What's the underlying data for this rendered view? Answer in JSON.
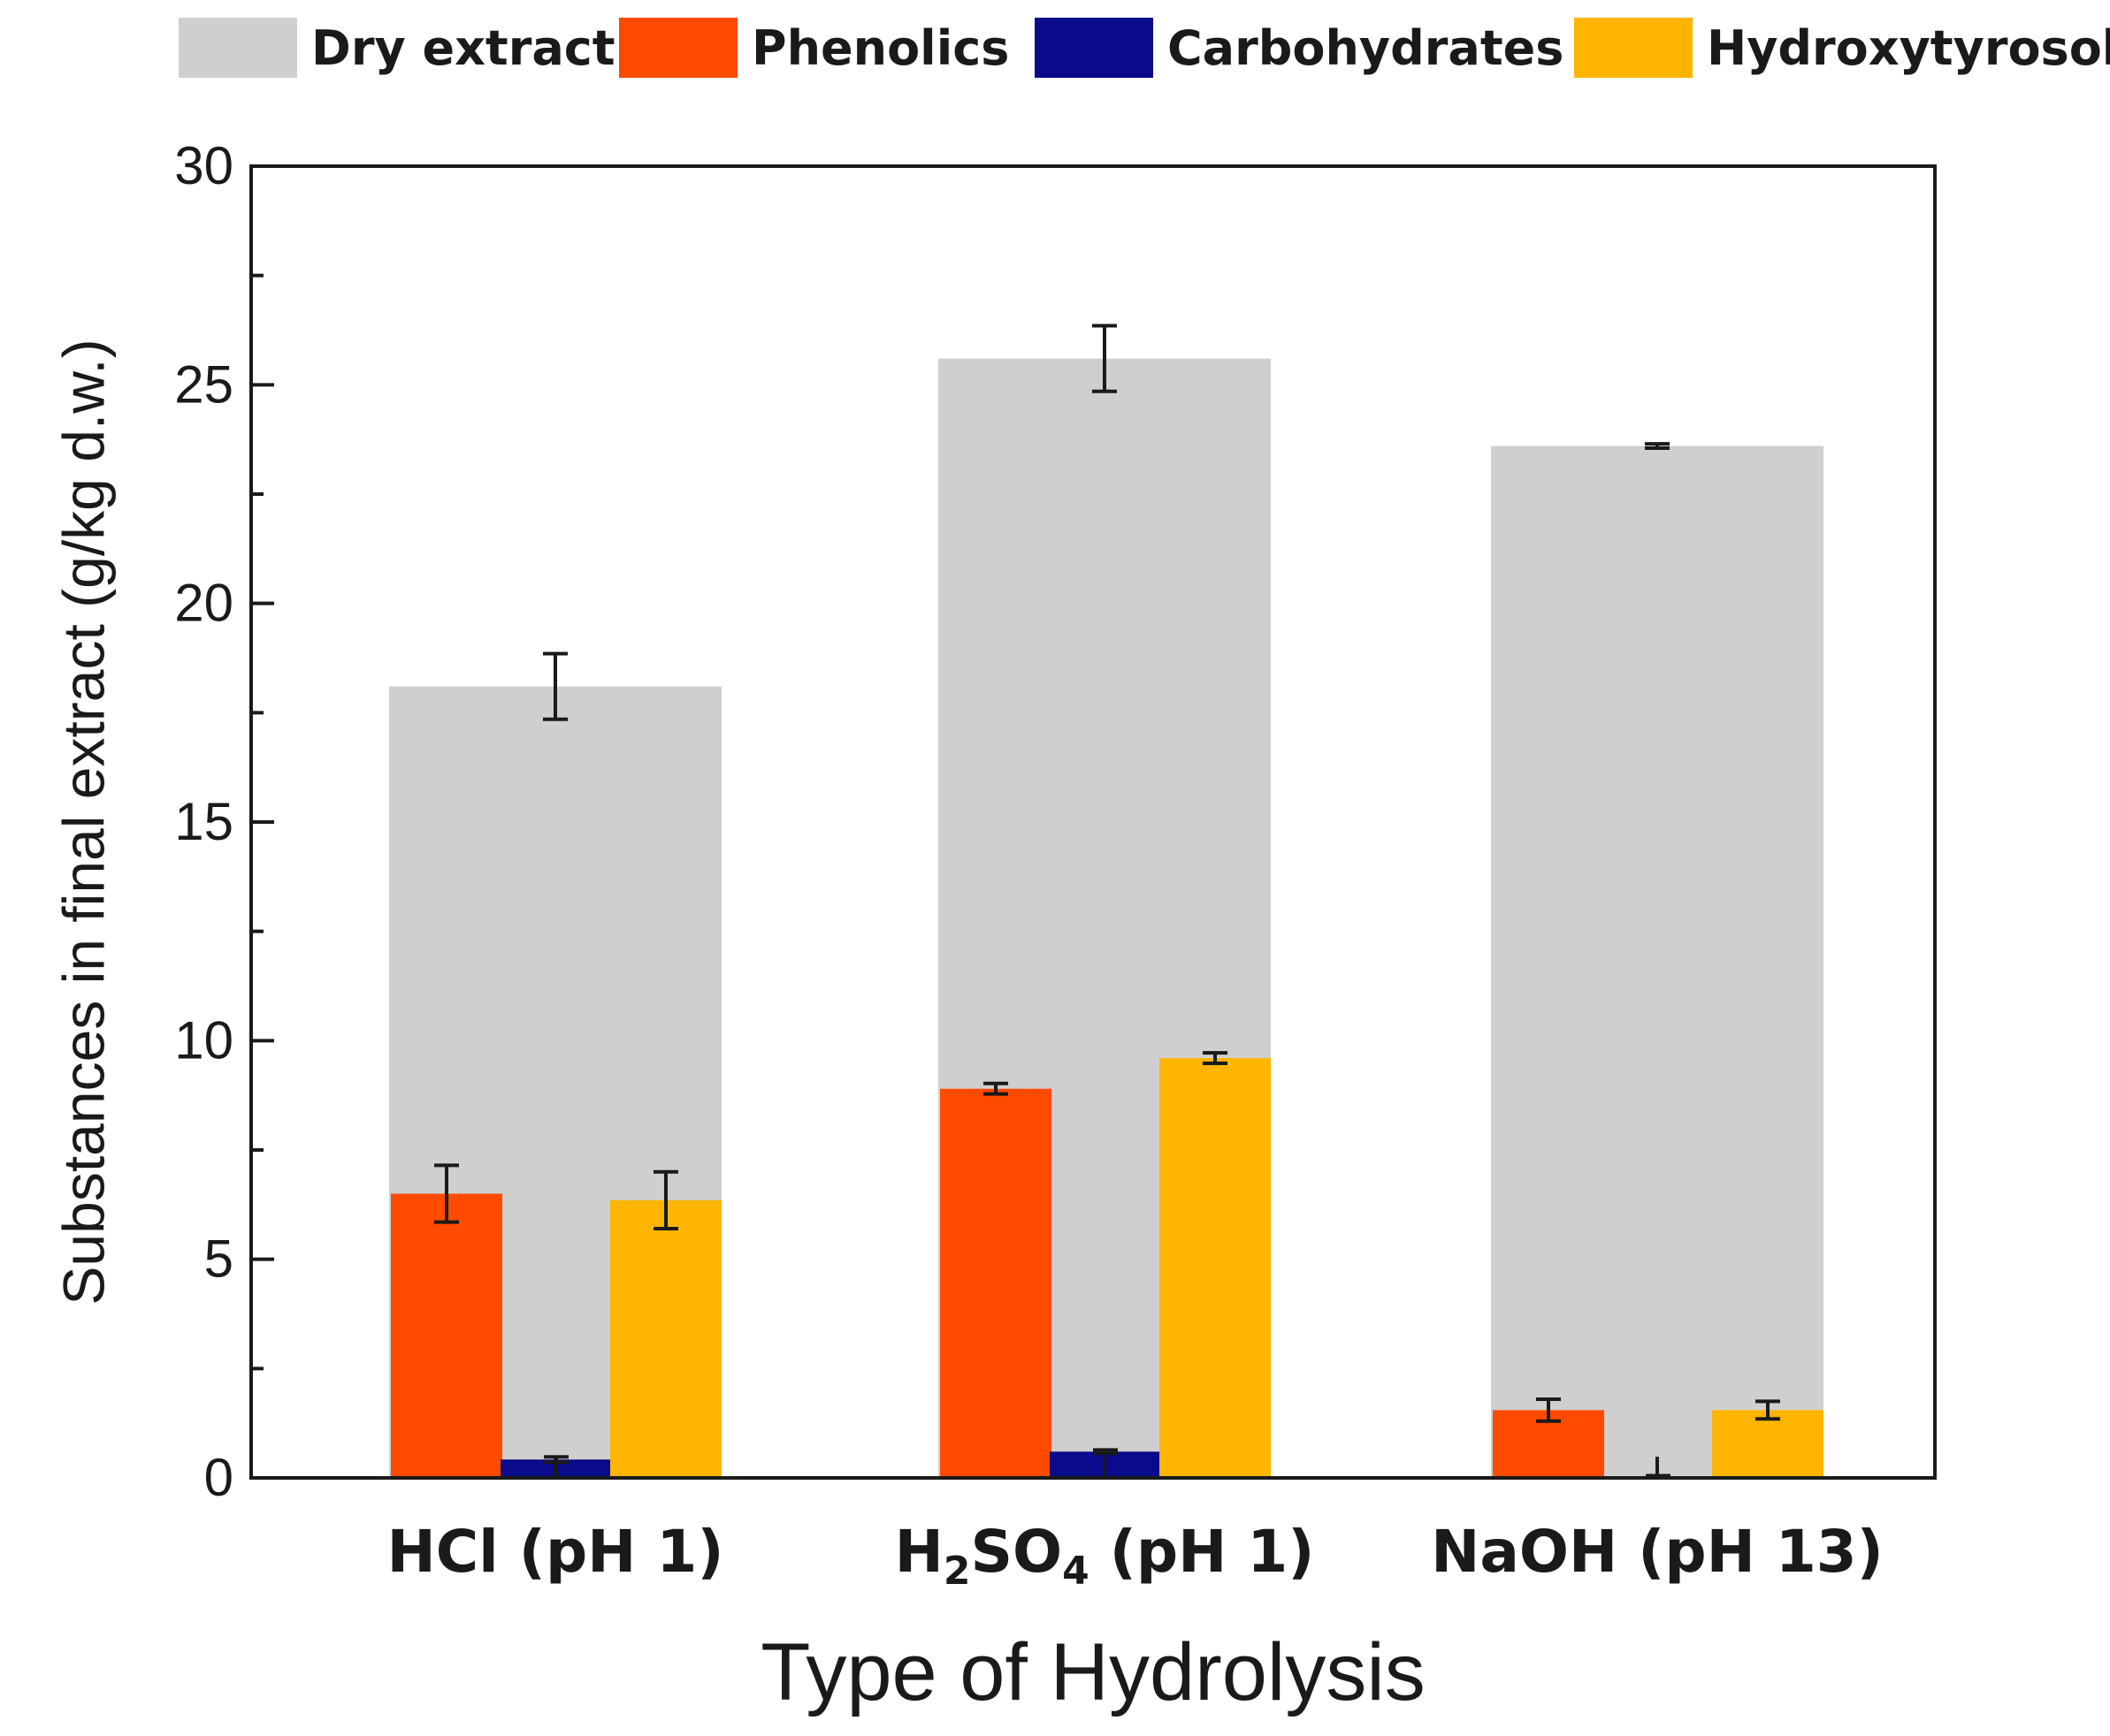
{
  "chart_data": {
    "type": "bar",
    "title": "",
    "xlabel": "Type of Hydrolysis",
    "ylabel": "Substances in final extract (g/kg d.w.)",
    "ylim": [
      0,
      30
    ],
    "yticks": [
      0,
      5,
      10,
      15,
      20,
      25,
      30
    ],
    "grid": false,
    "legend_position": "top",
    "categories": [
      {
        "parts": [
          {
            "text": "HCl (pH 1)"
          }
        ]
      },
      {
        "parts": [
          {
            "text": "H"
          },
          {
            "text": "2",
            "sub": true
          },
          {
            "text": "SO"
          },
          {
            "text": "4",
            "sub": true
          },
          {
            "text": " (pH 1)"
          }
        ]
      },
      {
        "parts": [
          {
            "text": "NaOH (pH 13)"
          }
        ]
      }
    ],
    "series": [
      {
        "name": "Dry extract",
        "color": "#cfcfcf",
        "values": [
          18.1,
          25.6,
          23.6
        ],
        "errors": [
          0.75,
          0.75,
          0.05
        ]
      },
      {
        "name": "Phenolics",
        "color": "#ff4a00",
        "values": [
          6.5,
          8.9,
          1.55
        ],
        "errors": [
          0.65,
          0.12,
          0.25
        ]
      },
      {
        "name": "Carbohydrates",
        "color": "#0a0a8c",
        "values": [
          0.42,
          0.6,
          0.03
        ],
        "errors": [
          0.06,
          0.04,
          0.02
        ]
      },
      {
        "name": "Hydroxytyrosol",
        "color": "#ffb400",
        "values": [
          6.35,
          9.6,
          1.55
        ],
        "errors": [
          0.65,
          0.12,
          0.2
        ]
      }
    ]
  }
}
